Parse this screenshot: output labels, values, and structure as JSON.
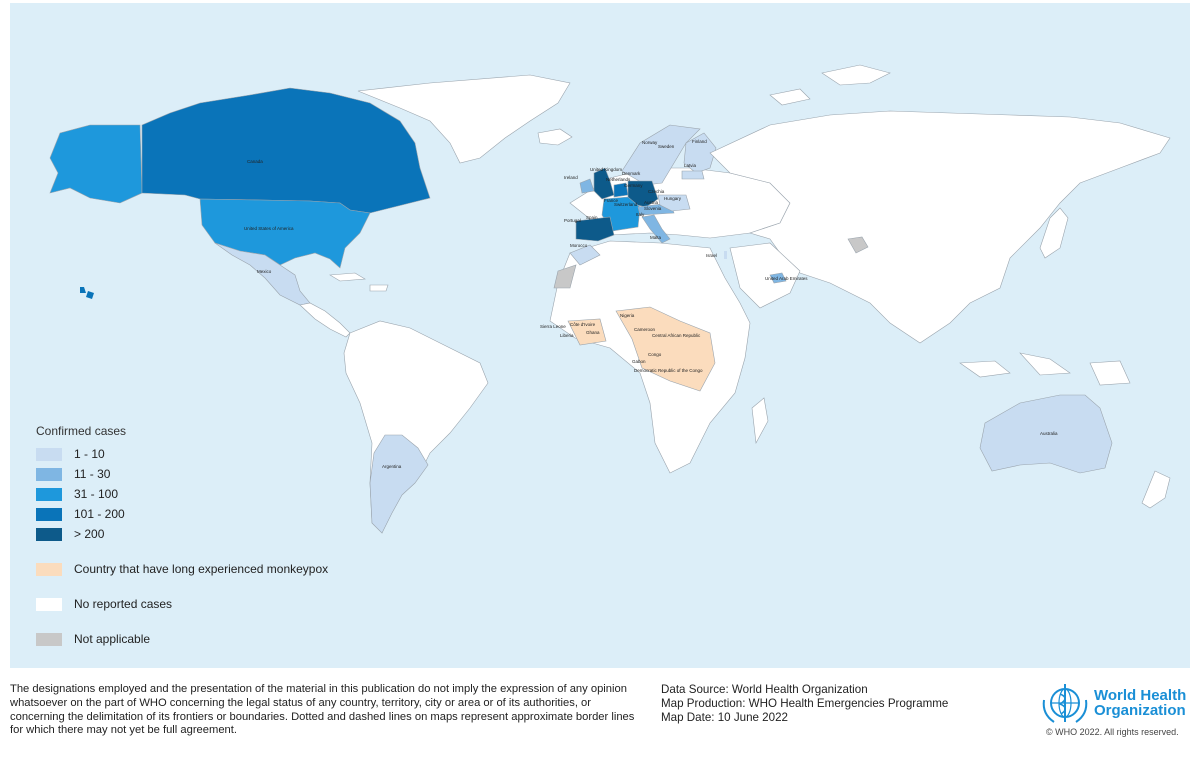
{
  "colors": {
    "ocean": "#dceef8",
    "land_no_cases": "#ffffff",
    "border": "#9aa4ad",
    "endemic": "#fbdcbd",
    "not_applicable": "#c8c8c8",
    "range_1_10": "#c8dcf1",
    "range_11_30": "#7fb6e3",
    "range_31_100": "#1e98dc",
    "range_101_200": "#0a74b9",
    "range_over_200": "#0d5a8a"
  },
  "map_labels": {
    "canada": "Canada",
    "usa": "United States of America",
    "mexico": "Mexico",
    "argentina": "Argentina",
    "norway": "Norway",
    "sweden": "Sweden",
    "finland": "Finland",
    "latvia": "Latvia",
    "uk": "United Kingdom",
    "ireland": "Ireland",
    "netherlands": "Netherlands",
    "denmark": "Denmark",
    "germany": "Germany",
    "czechia": "Czechia",
    "hungary": "Hungary",
    "austria": "Austria",
    "slovenia": "Slovenia",
    "switzerland": "Switzerland",
    "france": "France",
    "portugal": "Portugal",
    "spain": "Spain",
    "italy": "Italy",
    "malta": "Malta",
    "israel": "Israel",
    "uae": "United Arab Emirates",
    "morocco": "Morocco",
    "sierra_leone": "Sierra Leone",
    "cote_divoire": "Côte d'Ivoire",
    "liberia": "Liberia",
    "ghana": "Ghana",
    "nigeria": "Nigeria",
    "cameroon": "Cameroon",
    "car": "Central African Republic",
    "congo": "Congo",
    "gabon": "Gabon",
    "drc": "Democratic Republic of the Congo",
    "australia": "Australia"
  },
  "legend": {
    "title": "Confirmed cases",
    "ranges": [
      {
        "label": "1 - 10",
        "color": "#c8dcf1"
      },
      {
        "label": "11 - 30",
        "color": "#7fb6e3"
      },
      {
        "label": "31 - 100",
        "color": "#1e98dc"
      },
      {
        "label": "101 - 200",
        "color": "#0a74b9"
      },
      {
        "label": "> 200",
        "color": "#0d5a8a"
      }
    ],
    "endemic_label": "Country that have long experienced monkeypox",
    "no_cases_label": "No reported cases",
    "not_applicable_label": "Not applicable"
  },
  "footer": {
    "disclaimer": "The designations employed and the presentation of the material in this publication do not imply the expression of any opinion whatsoever on the part of WHO concerning the legal status of any country, territory, city or area or of its authorities, or concerning the delimitation of its frontiers or boundaries. Dotted and dashed lines on maps represent approximate border lines for which there may not yet be full agreement.",
    "data_source": "Data Source: World Health Organization",
    "map_production": "Map Production: WHO Health Emergencies Programme",
    "map_date": "Map Date: 10 June 2022",
    "who_name_line1": "World Health",
    "who_name_line2": "Organization",
    "copyright": "© WHO 2022. All rights reserved."
  }
}
